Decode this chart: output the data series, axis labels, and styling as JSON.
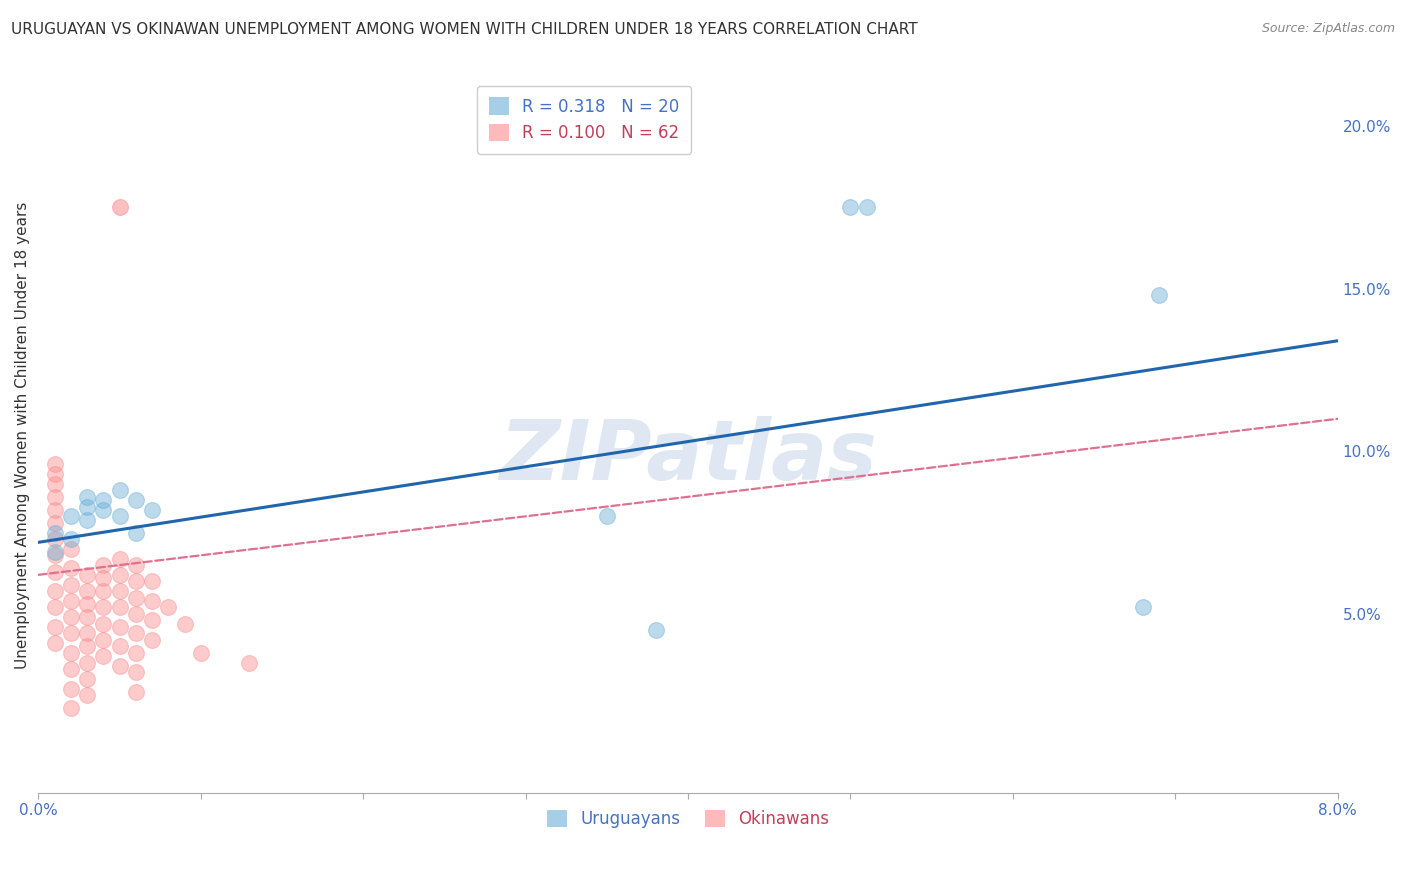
{
  "title": "URUGUAYAN VS OKINAWAN UNEMPLOYMENT AMONG WOMEN WITH CHILDREN UNDER 18 YEARS CORRELATION CHART",
  "source": "Source: ZipAtlas.com",
  "ylabel": "Unemployment Among Women with Children Under 18 years",
  "watermark": "ZIPatlas",
  "xlim": [
    0.0,
    0.08
  ],
  "ylim": [
    -0.005,
    0.215
  ],
  "xticks": [
    0.0,
    0.01,
    0.02,
    0.03,
    0.04,
    0.05,
    0.06,
    0.07,
    0.08
  ],
  "xtick_labels": [
    "0.0%",
    "",
    "",
    "",
    "",
    "",
    "",
    "",
    "8.0%"
  ],
  "yticks_right": [
    0.05,
    0.1,
    0.15,
    0.2
  ],
  "ytick_labels_right": [
    "5.0%",
    "10.0%",
    "15.0%",
    "20.0%"
  ],
  "legend_blue_R": "0.318",
  "legend_blue_N": "20",
  "legend_pink_R": "0.100",
  "legend_pink_N": "62",
  "legend_label_blue": "Uruguayans",
  "legend_label_pink": "Okinawans",
  "blue_color": "#6baed6",
  "pink_color": "#fc8d8d",
  "blue_line_color": "#2166ac",
  "pink_line_color": "#e07090",
  "uruguayan_x": [
    0.001,
    0.001,
    0.002,
    0.002,
    0.003,
    0.003,
    0.003,
    0.004,
    0.004,
    0.005,
    0.005,
    0.006,
    0.006,
    0.007,
    0.035,
    0.038,
    0.05,
    0.051,
    0.068,
    0.069
  ],
  "uruguayan_y": [
    0.075,
    0.069,
    0.08,
    0.073,
    0.086,
    0.083,
    0.079,
    0.085,
    0.082,
    0.088,
    0.08,
    0.085,
    0.075,
    0.082,
    0.08,
    0.045,
    0.175,
    0.175,
    0.052,
    0.148
  ],
  "okinawan_x": [
    0.001,
    0.001,
    0.001,
    0.001,
    0.001,
    0.001,
    0.001,
    0.001,
    0.001,
    0.001,
    0.001,
    0.001,
    0.001,
    0.002,
    0.002,
    0.002,
    0.002,
    0.002,
    0.002,
    0.002,
    0.002,
    0.002,
    0.002,
    0.003,
    0.003,
    0.003,
    0.003,
    0.003,
    0.003,
    0.003,
    0.003,
    0.003,
    0.004,
    0.004,
    0.004,
    0.004,
    0.004,
    0.004,
    0.004,
    0.005,
    0.005,
    0.005,
    0.005,
    0.005,
    0.005,
    0.005,
    0.006,
    0.006,
    0.006,
    0.006,
    0.006,
    0.006,
    0.006,
    0.006,
    0.007,
    0.007,
    0.007,
    0.007,
    0.008,
    0.009,
    0.01,
    0.013
  ],
  "okinawan_y": [
    0.096,
    0.093,
    0.09,
    0.086,
    0.082,
    0.078,
    0.073,
    0.068,
    0.063,
    0.057,
    0.052,
    0.046,
    0.041,
    0.07,
    0.064,
    0.059,
    0.054,
    0.049,
    0.044,
    0.038,
    0.033,
    0.027,
    0.021,
    0.062,
    0.057,
    0.053,
    0.049,
    0.044,
    0.04,
    0.035,
    0.03,
    0.025,
    0.065,
    0.061,
    0.057,
    0.052,
    0.047,
    0.042,
    0.037,
    0.067,
    0.062,
    0.057,
    0.052,
    0.046,
    0.04,
    0.034,
    0.065,
    0.06,
    0.055,
    0.05,
    0.044,
    0.038,
    0.032,
    0.026,
    0.06,
    0.054,
    0.048,
    0.042,
    0.052,
    0.047,
    0.038,
    0.035
  ],
  "okinawan_outlier_x": [
    0.005
  ],
  "okinawan_outlier_y": [
    0.175
  ],
  "blue_trend_x0": 0.0,
  "blue_trend_y0": 0.072,
  "blue_trend_x1": 0.08,
  "blue_trend_y1": 0.134,
  "pink_trend_x0": 0.0,
  "pink_trend_y0": 0.062,
  "pink_trend_x1": 0.08,
  "pink_trend_y1": 0.11,
  "grid_color": "#cccccc",
  "background_color": "#ffffff",
  "title_fontsize": 11,
  "axis_label_fontsize": 11,
  "tick_fontsize": 11,
  "watermark_fontsize": 60,
  "watermark_color": "#b8cce4",
  "watermark_alpha": 0.45
}
